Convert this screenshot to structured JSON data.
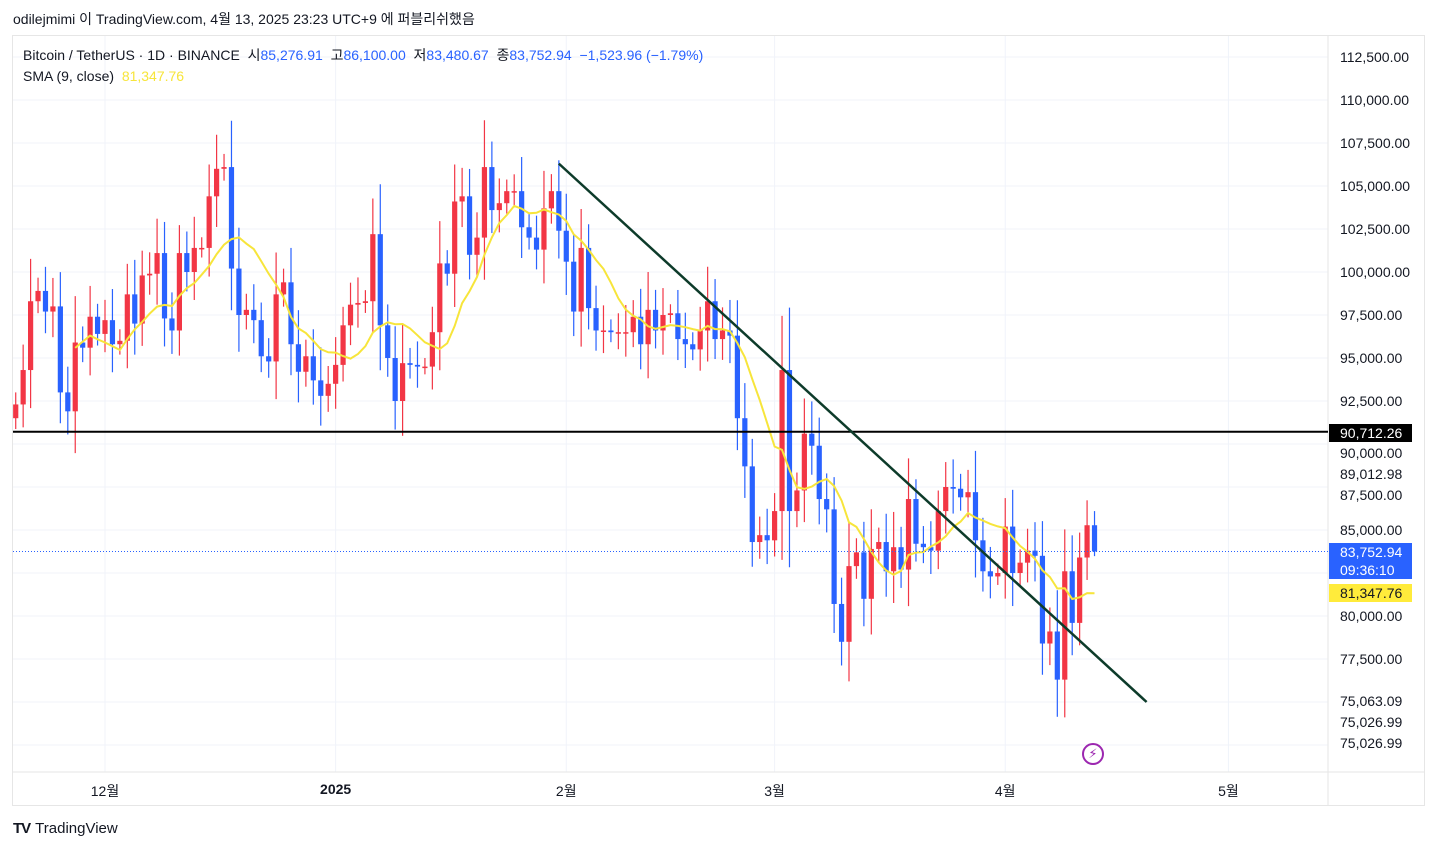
{
  "publish_line": "odilejmimi 이 TradingView.com, 4월 13, 2025 23:23 UTC+9 에 퍼블리쉬했음",
  "legend": {
    "symbol": "Bitcoin / TetherUS · 1D · BINANCE",
    "open_label": "시",
    "open": "85,276.91",
    "high_label": "고",
    "high": "86,100.00",
    "low_label": "저",
    "low": "83,480.67",
    "close_label": "종",
    "close": "83,752.94",
    "change": "−1,523.96 (−1.79%)",
    "sma_label": "SMA (9, close)",
    "sma_value": "81,347.76"
  },
  "badges": {
    "hline_price": "90,712.26",
    "last_price": "83,752.94",
    "countdown": "09:36:10",
    "sma_price": "81,347.76"
  },
  "colors": {
    "up": "#f23645",
    "down": "#2962ff",
    "sma": "#f7e53b",
    "trendline": "#0d3b2a",
    "hline": "#000000"
  },
  "footer": {
    "brand": "TradingView",
    "logo": "TV"
  },
  "chart_data": {
    "type": "candlestick",
    "timeframe": "1D",
    "start_date": "2024-11-19",
    "closes": [
      92300,
      94300,
      98300,
      98900,
      97700,
      98000,
      93000,
      91900,
      95900,
      95600,
      97400,
      96400,
      97200,
      95800,
      96000,
      98700,
      97000,
      99800,
      99900,
      101100,
      97300,
      96600,
      101100,
      100000,
      101400,
      101400,
      104400,
      106000,
      106100,
      100200,
      97500,
      97800,
      97200,
      95100,
      94800,
      98700,
      99400,
      95800,
      94200,
      95100,
      93700,
      92800,
      93500,
      94600,
      96900,
      98100,
      98200,
      98300,
      102200,
      96900,
      95000,
      92500,
      94700,
      94600,
      94500,
      94500,
      96500,
      100500,
      99900,
      104100,
      104400,
      101000,
      102000,
      106100,
      103600,
      104000,
      104700,
      104700,
      102600,
      102000,
      101300,
      103700,
      104700,
      102400,
      100600,
      97700,
      101400,
      97900,
      96600,
      96600,
      96500,
      96500,
      96500,
      97400,
      95800,
      97800,
      96600,
      97500,
      97600,
      96100,
      95800,
      95500,
      96600,
      98300,
      96100,
      96600,
      96300,
      91500,
      88700,
      84300,
      84700,
      84400,
      86100,
      94300,
      86100,
      87300,
      90600,
      89900,
      86800,
      86200,
      80700,
      78500,
      82900,
      83700,
      81000,
      83900,
      84300,
      82600,
      84000,
      82700,
      86800,
      84200,
      84000,
      83800,
      86100,
      87500,
      87400,
      86900,
      87200,
      84400,
      82600,
      82300,
      82500,
      85200,
      82500,
      83100,
      83800,
      83500,
      78400,
      79100,
      76300,
      82600,
      79600,
      83400,
      85276.91,
      83752.94
    ],
    "last_candle": {
      "open": 85276.91,
      "high": 86100.0,
      "low": 83480.67,
      "close": 83752.94
    },
    "sma": {
      "period": 9,
      "source": "close",
      "last": 81347.76
    },
    "horizontal_line": 90712.26,
    "trendline": {
      "from": {
        "date": "2025-01-31",
        "price": 106300
      },
      "to": {
        "date": "2025-04-20",
        "price": 75000
      }
    },
    "price_axis_labels": [
      "112,500.00",
      "110,000.00",
      "107,500.00",
      "105,000.00",
      "102,500.00",
      "100,000.00",
      "97,500.00",
      "95,000.00",
      "92,500.00",
      "90,000.00",
      "89,012.98",
      "87,500.00",
      "85,000.00",
      "80,000.00",
      "77,500.00",
      "75,063.09",
      "75,026.99",
      "75,026.99"
    ],
    "price_axis_values": [
      112500,
      110000,
      107500,
      105000,
      102500,
      100000,
      97500,
      95000,
      92500,
      90000,
      89012.98,
      87500,
      85000,
      80000,
      77500,
      75063.09,
      75026.99,
      75026.99
    ],
    "time_axis_labels": [
      {
        "label": "12월",
        "date": "2024-12-01"
      },
      {
        "label": "2025",
        "date": "2025-01-01"
      },
      {
        "label": "2월",
        "date": "2025-02-01"
      },
      {
        "label": "3월",
        "date": "2025-03-01"
      },
      {
        "label": "4월",
        "date": "2025-04-01"
      },
      {
        "label": "5월",
        "date": "2025-05-01"
      }
    ]
  }
}
